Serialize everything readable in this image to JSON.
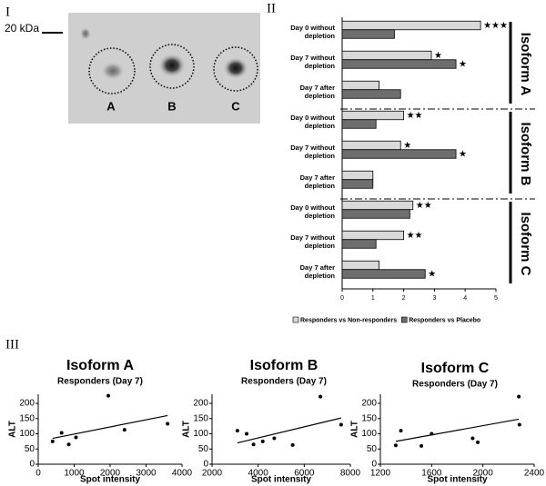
{
  "panel_labels": [
    "I",
    "II",
    "III"
  ],
  "gel": {
    "marker_label": "20 kDa",
    "spot_labels": [
      "A",
      "B",
      "C"
    ]
  },
  "chart_data": [
    {
      "type": "bar",
      "orientation": "horizontal",
      "categories": [
        "Day 0 without depletion",
        "Day 7 without depletion",
        "Day 7 after depletion",
        "Day 0 without depletion",
        "Day 7 without depletion",
        "Day 7 after depletion",
        "Day 0 without depletion",
        "Day 7 without depletion",
        "Day 7 after depletion"
      ],
      "group_labels": [
        "Isoform A",
        "Isoform B",
        "Isoform C"
      ],
      "series": [
        {
          "name": "Responders vs Non-responders",
          "color": "#d9d9d9",
          "values": [
            4.5,
            2.9,
            1.2,
            2.0,
            1.9,
            1.0,
            2.3,
            2.0,
            1.2
          ],
          "annotations": [
            "★★★",
            "★",
            null,
            "★★",
            "★",
            null,
            "★★",
            "★★",
            null
          ]
        },
        {
          "name": "Responders vs Placebo",
          "color": "#6e6e6e",
          "values": [
            1.7,
            3.7,
            1.9,
            1.1,
            3.7,
            1.0,
            2.2,
            1.1,
            2.7
          ],
          "annotations": [
            null,
            "★",
            null,
            null,
            "★",
            null,
            null,
            null,
            "★"
          ]
        }
      ],
      "xlim": [
        0,
        5
      ],
      "xticks": [
        0,
        1,
        2,
        3,
        4,
        5
      ],
      "legend": "bottom"
    },
    {
      "type": "scatter",
      "title": "Isoform A",
      "subtitle": "Responders (Day 7)",
      "xlabel": "Spot intensity",
      "ylabel": "ALT",
      "x": [
        400,
        650,
        850,
        1050,
        1950,
        2400,
        3600
      ],
      "values": [
        75,
        103,
        65,
        88,
        225,
        113,
        133
      ],
      "color": "#000000",
      "xlim": [
        0,
        4000
      ],
      "xticks": [
        0,
        1000,
        2000,
        3000,
        4000
      ],
      "ylim": [
        0,
        230
      ],
      "yticks": [
        0,
        50,
        100,
        150,
        200
      ],
      "trendline": {
        "x": [
          400,
          3600
        ],
        "y": [
          85,
          160
        ]
      }
    },
    {
      "type": "scatter",
      "title": "Isoform B",
      "subtitle": "Responders (Day 7)",
      "xlabel": "Spot intensity",
      "ylabel": "ALT",
      "x": [
        3100,
        3500,
        3800,
        4200,
        4700,
        5500,
        6700,
        7600
      ],
      "values": [
        110,
        100,
        65,
        75,
        85,
        63,
        222,
        130
      ],
      "color": "#000000",
      "xlim": [
        2000,
        8000
      ],
      "xticks": [
        2000,
        4000,
        6000,
        8000
      ],
      "ylim": [
        0,
        230
      ],
      "yticks": [
        0,
        50,
        100,
        150,
        200
      ],
      "trendline": {
        "x": [
          3100,
          7600
        ],
        "y": [
          70,
          152
        ]
      }
    },
    {
      "type": "scatter",
      "title": "Isoform C",
      "subtitle": "Responders (Day 7)",
      "xlabel": "Spot intensity",
      "ylabel": "ALT",
      "x": [
        1320,
        1360,
        1520,
        1600,
        1920,
        1960,
        2280,
        2285
      ],
      "values": [
        62,
        110,
        60,
        100,
        85,
        72,
        222,
        130
      ],
      "color": "#000000",
      "xlim": [
        1200,
        2400
      ],
      "xticks": [
        1200,
        1600,
        2000,
        2400
      ],
      "ylim": [
        0,
        230
      ],
      "yticks": [
        0,
        50,
        100,
        150,
        200
      ],
      "trendline": {
        "x": [
          1320,
          2280
        ],
        "y": [
          75,
          148
        ]
      }
    }
  ]
}
